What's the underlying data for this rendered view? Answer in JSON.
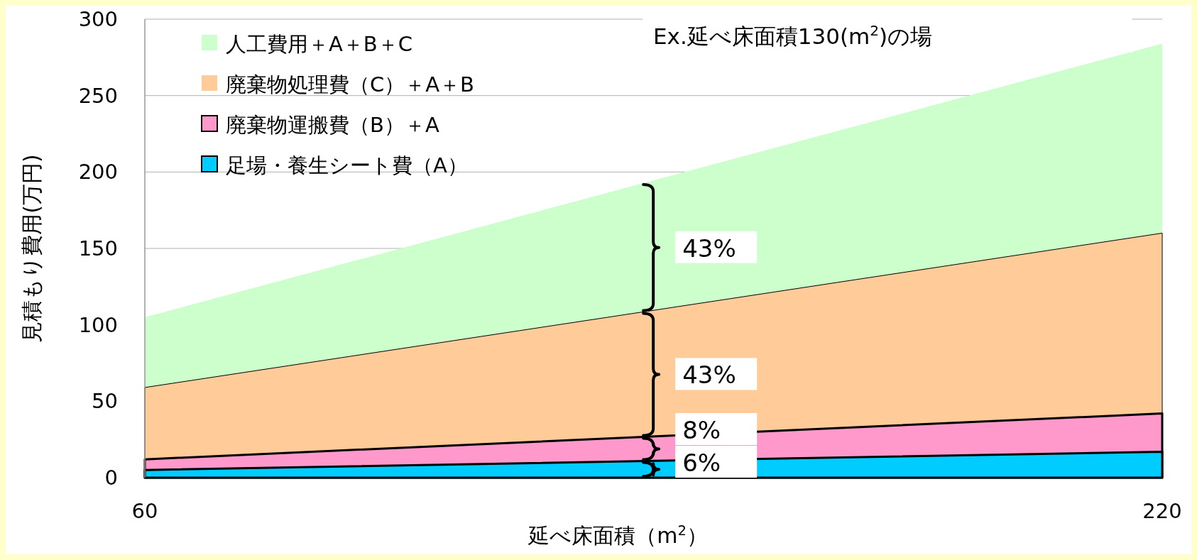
{
  "chart_data": {
    "type": "area",
    "xlabel": "延べ床面積（m$^{2}$）",
    "ylabel": "見積もり費用(万円)",
    "x": [
      60,
      220
    ],
    "xlim": [
      60,
      220
    ],
    "xticks": [
      60,
      220
    ],
    "ylim": [
      0,
      300
    ],
    "yticks": [
      0,
      50,
      100,
      150,
      200,
      250,
      300
    ],
    "grid": "y",
    "legend": "top left",
    "series": [
      {
        "name": "人工費用＋A＋B＋C",
        "color": "#ccffcc",
        "values": [
          105,
          284
        ]
      },
      {
        "name": "廃棄物処理費（C）＋A＋B",
        "color": "#ffcc99",
        "values": [
          59,
          160
        ]
      },
      {
        "name": "廃棄物運搬費（B）＋A",
        "color": "#ff99cc",
        "values": [
          12,
          42
        ]
      },
      {
        "name": "足場・養生シート費（A）",
        "color": "#00ccff",
        "values": [
          5,
          17
        ]
      }
    ],
    "annotations": [
      "Ex.延べ床面積130(m$^{2}$)の場",
      "43%",
      "43%",
      "8%",
      "6%"
    ]
  }
}
